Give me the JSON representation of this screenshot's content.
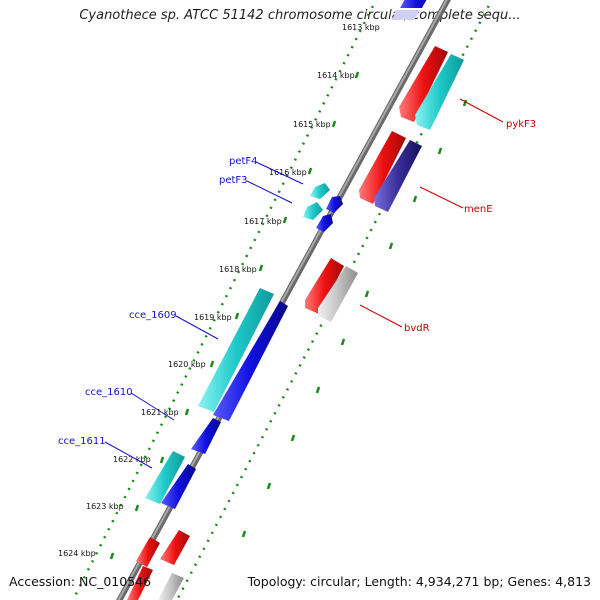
{
  "title": "Cyanothece sp. ATCC 51142 chromosome circular, complete sequ...",
  "accession": "Accession: NC_010546",
  "summary": "Topology: circular; Length: 4,934,271 bp; Genes: 4,813",
  "scale_labels": [
    "1613 kbp",
    "1614 kbp",
    "1615 kbp",
    "1616 kbp",
    "1617 kbp",
    "1618 kbp",
    "1619 kbp",
    "1620 kbp",
    "1621 kbp",
    "1622 kbp",
    "1623 kbp",
    "1624 kbp"
  ],
  "colors": {
    "backbone": "#8f8f8f",
    "scale_ticks": "#1a8a1a",
    "forward_label": "#1010cc",
    "reverse_label": "#cc0000",
    "cds_cyan": "#1fc9c9",
    "gene_blue": "#1010e0",
    "gene_red": "#ee1111",
    "gene_gray": "#c4c4c4",
    "gene_navy": "#3a2e9a"
  },
  "gene_labels": {
    "petF4": "petF4",
    "petF3": "petF3",
    "cce_1609": "cce_1609",
    "cce_1610": "cce_1610",
    "cce_1611": "cce_1611",
    "pykF3": "pykF3",
    "menE": "menE",
    "bvdR": "bvdR"
  }
}
